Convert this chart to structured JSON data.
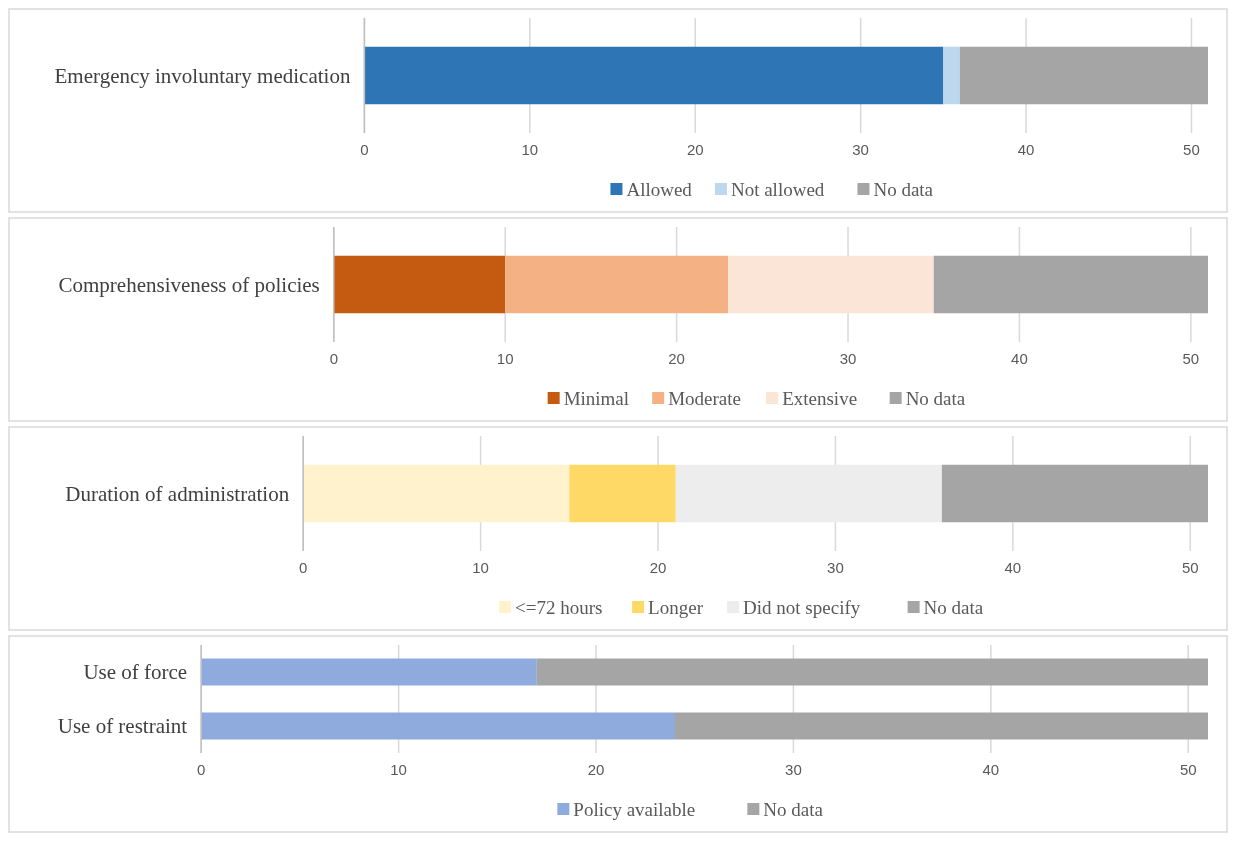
{
  "chart_data": [
    {
      "type": "bar",
      "orientation": "horizontal",
      "stacked": true,
      "categories": [
        "Emergency involuntary medication"
      ],
      "xlim": [
        0,
        51
      ],
      "xticks": [
        0,
        10,
        20,
        30,
        40,
        50
      ],
      "grid": "x",
      "legend": "bottom",
      "series": [
        {
          "name": "Allowed",
          "color": "#2e75b6",
          "values": [
            35
          ]
        },
        {
          "name": "Not allowed",
          "color": "#bdd7ee",
          "values": [
            1
          ]
        },
        {
          "name": "No data",
          "color": "#a5a5a5",
          "values": [
            15
          ]
        }
      ]
    },
    {
      "type": "bar",
      "orientation": "horizontal",
      "stacked": true,
      "categories": [
        "Comprehensiveness of policies"
      ],
      "xlim": [
        0,
        51
      ],
      "xticks": [
        0,
        10,
        20,
        30,
        40,
        50
      ],
      "grid": "x",
      "legend": "bottom",
      "series": [
        {
          "name": "Minimal",
          "color": "#c55a11",
          "values": [
            10
          ]
        },
        {
          "name": "Moderate",
          "color": "#f4b183",
          "values": [
            13
          ]
        },
        {
          "name": "Extensive",
          "color": "#fbe5d6",
          "values": [
            12
          ]
        },
        {
          "name": "No data",
          "color": "#a5a5a5",
          "values": [
            16
          ]
        }
      ]
    },
    {
      "type": "bar",
      "orientation": "horizontal",
      "stacked": true,
      "categories": [
        "Duration of administration"
      ],
      "xlim": [
        0,
        51
      ],
      "xticks": [
        0,
        10,
        20,
        30,
        40,
        50
      ],
      "grid": "x",
      "legend": "bottom",
      "series": [
        {
          "name": "<=72 hours",
          "color": "#fff2cc",
          "values": [
            15
          ]
        },
        {
          "name": "Longer",
          "color": "#ffd966",
          "values": [
            6
          ]
        },
        {
          "name": "Did not specify",
          "color": "#ededed",
          "values": [
            15
          ]
        },
        {
          "name": "No data",
          "color": "#a5a5a5",
          "values": [
            15
          ]
        }
      ]
    },
    {
      "type": "bar",
      "orientation": "horizontal",
      "stacked": true,
      "categories": [
        "Use of force",
        "Use of restraint"
      ],
      "xlim": [
        0,
        51
      ],
      "xticks": [
        0,
        10,
        20,
        30,
        40,
        50
      ],
      "grid": "x",
      "legend": "bottom",
      "series": [
        {
          "name": "Policy available",
          "color": "#8faadc",
          "values": [
            17,
            24
          ]
        },
        {
          "name": "No data",
          "color": "#a5a5a5",
          "values": [
            34,
            27
          ]
        }
      ]
    }
  ]
}
